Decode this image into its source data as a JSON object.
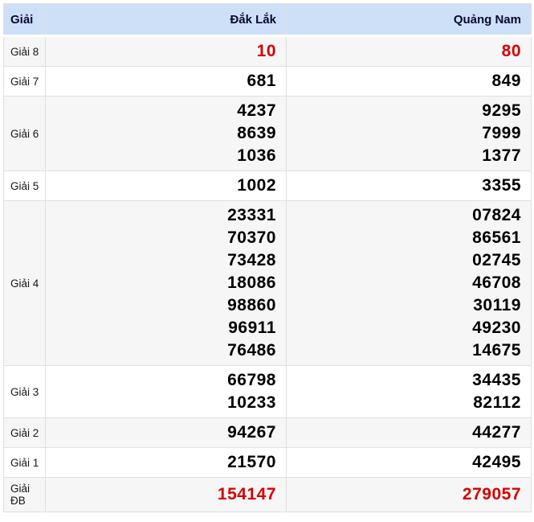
{
  "table": {
    "header": {
      "col_prize": "Giải",
      "col_left": "Đắk Lắk",
      "col_right": "Quảng Nam"
    },
    "colors": {
      "header_bg": "#cde0f7",
      "shaded_row_bg": "#f6f6f6",
      "highlight_red": "#d60000",
      "number_black": "#000000",
      "border": "#e0e0e0"
    },
    "rows": [
      {
        "label": "Giải 8",
        "left": [
          "10"
        ],
        "right": [
          "80"
        ],
        "highlight": true,
        "shaded": true
      },
      {
        "label": "Giải 7",
        "left": [
          "681"
        ],
        "right": [
          "849"
        ],
        "highlight": false,
        "shaded": false
      },
      {
        "label": "Giải 6",
        "left": [
          "4237",
          "8639",
          "1036"
        ],
        "right": [
          "9295",
          "7999",
          "1377"
        ],
        "highlight": false,
        "shaded": true
      },
      {
        "label": "Giải 5",
        "left": [
          "1002"
        ],
        "right": [
          "3355"
        ],
        "highlight": false,
        "shaded": false
      },
      {
        "label": "Giải 4",
        "left": [
          "23331",
          "70370",
          "73428",
          "18086",
          "98860",
          "96911",
          "76486"
        ],
        "right": [
          "07824",
          "86561",
          "02745",
          "46708",
          "30119",
          "49230",
          "14675"
        ],
        "highlight": false,
        "shaded": true
      },
      {
        "label": "Giải 3",
        "left": [
          "66798",
          "10233"
        ],
        "right": [
          "34435",
          "82112"
        ],
        "highlight": false,
        "shaded": false
      },
      {
        "label": "Giải 2",
        "left": [
          "94267"
        ],
        "right": [
          "44277"
        ],
        "highlight": false,
        "shaded": true
      },
      {
        "label": "Giải 1",
        "left": [
          "21570"
        ],
        "right": [
          "42495"
        ],
        "highlight": false,
        "shaded": false
      },
      {
        "label": "Giải ĐB",
        "left": [
          "154147"
        ],
        "right": [
          "279057"
        ],
        "highlight": true,
        "shaded": true,
        "db": true
      }
    ]
  }
}
